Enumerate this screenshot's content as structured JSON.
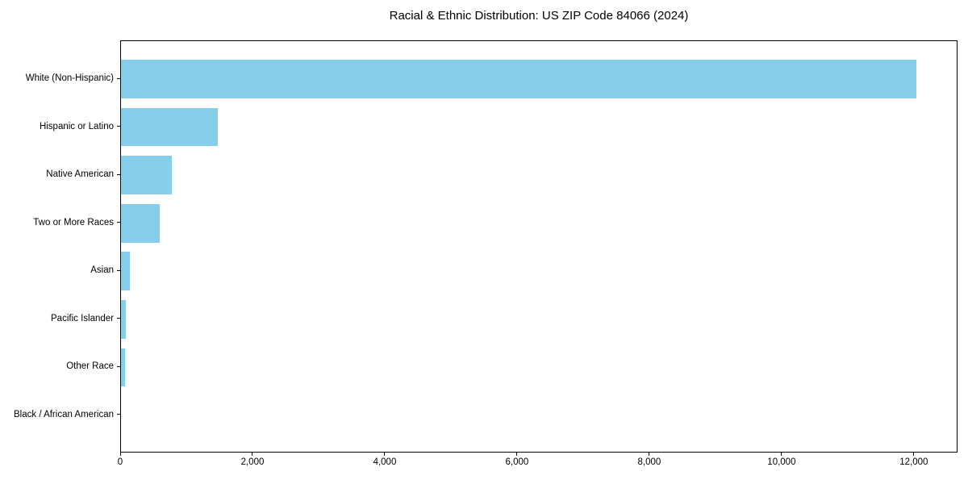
{
  "header": {
    "title": "Racial & Ethnic Distribution: US ZIP Code 84066 (2024)"
  },
  "chart_data": {
    "type": "bar",
    "orientation": "horizontal",
    "title": "Racial & Ethnic Distribution: US ZIP Code 84066 (2024)",
    "categories": [
      "White (Non-Hispanic)",
      "Hispanic or Latino",
      "Native American",
      "Two or More Races",
      "Asian",
      "Pacific Islander",
      "Other Race",
      "Black / African American"
    ],
    "values": [
      12030,
      1460,
      765,
      580,
      140,
      70,
      65,
      0
    ],
    "xlabel": "",
    "ylabel": "",
    "xlim": [
      0,
      12660
    ],
    "x_ticks": [
      0,
      2000,
      4000,
      6000,
      8000,
      10000,
      12000
    ],
    "x_tick_labels": [
      "0",
      "2,000",
      "4,000",
      "6,000",
      "8,000",
      "10,000",
      "12,000"
    ],
    "bar_color": "#87CEEB",
    "axis_color": "#000000",
    "background_color": "#ffffff",
    "grid": false,
    "legend": null
  }
}
